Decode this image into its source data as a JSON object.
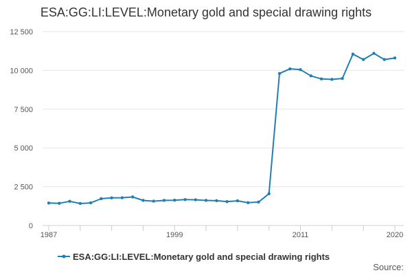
{
  "chart_data": {
    "type": "line",
    "title": "ESA:GG:LI:LEVEL:Monetary gold and special drawing rights",
    "xlabel": "",
    "ylabel": "",
    "xlim": [
      1987,
      2020
    ],
    "ylim": [
      0,
      12500
    ],
    "y_ticks": [
      0,
      2500,
      5000,
      7500,
      10000,
      12500
    ],
    "y_tick_labels": [
      "0",
      "2 500",
      "5 000",
      "7 500",
      "10 000",
      "12 500"
    ],
    "x_ticks": [
      1987,
      1999,
      2011,
      2020
    ],
    "x_tick_labels": [
      "1987",
      "1999",
      "2011",
      "2020"
    ],
    "grid": true,
    "legend_position": "bottom",
    "series": [
      {
        "name": "ESA:GG:LI:LEVEL:Monetary gold and special drawing rights",
        "color": "#1f7fb4",
        "x": [
          1987,
          1988,
          1989,
          1990,
          1991,
          1992,
          1993,
          1994,
          1995,
          1996,
          1997,
          1998,
          1999,
          2000,
          2001,
          2002,
          2003,
          2004,
          2005,
          2006,
          2007,
          2008,
          2009,
          2010,
          2011,
          2012,
          2013,
          2014,
          2015,
          2016,
          2017,
          2018,
          2019,
          2020
        ],
        "values": [
          1450,
          1430,
          1560,
          1420,
          1460,
          1730,
          1780,
          1790,
          1840,
          1620,
          1570,
          1620,
          1630,
          1670,
          1660,
          1620,
          1600,
          1540,
          1590,
          1470,
          1510,
          2050,
          9800,
          10100,
          10050,
          9650,
          9450,
          9420,
          9480,
          11050,
          10700,
          11100,
          10700,
          10800
        ]
      }
    ]
  },
  "source_label": "Source:"
}
